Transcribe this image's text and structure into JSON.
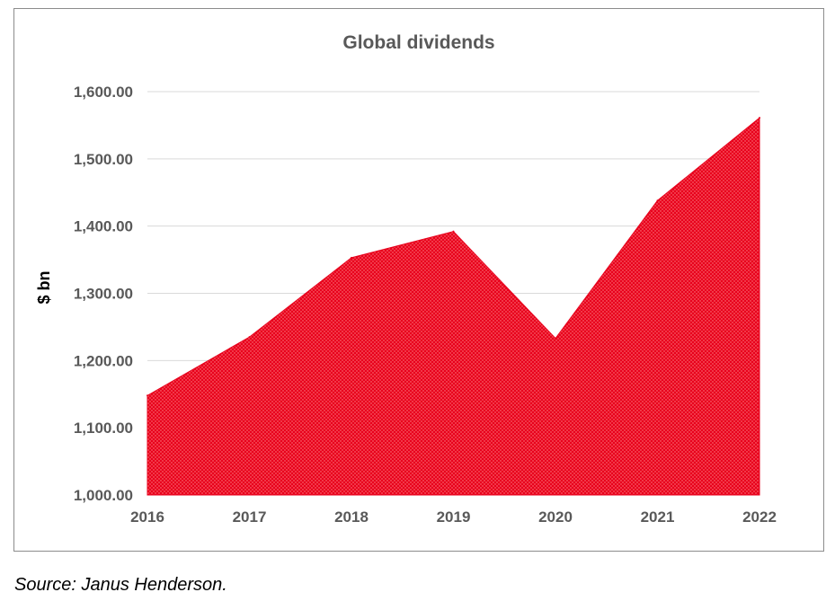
{
  "chart_data": {
    "type": "area",
    "title": "Global dividends",
    "xlabel": "",
    "ylabel": "$ bn",
    "categories": [
      "2016",
      "2017",
      "2018",
      "2019",
      "2020",
      "2021",
      "2022"
    ],
    "series": [
      {
        "values": [
          1148,
          1235,
          1353,
          1392,
          1233,
          1438,
          1561
        ]
      }
    ],
    "ylim": [
      1000,
      1600
    ],
    "yticks": [
      "1,000.00",
      "1,100.00",
      "1,200.00",
      "1,300.00",
      "1,400.00",
      "1,500.00",
      "1,600.00"
    ],
    "grid": true,
    "fill_color": "#e8001c"
  },
  "source": "Source: Janus Henderson."
}
